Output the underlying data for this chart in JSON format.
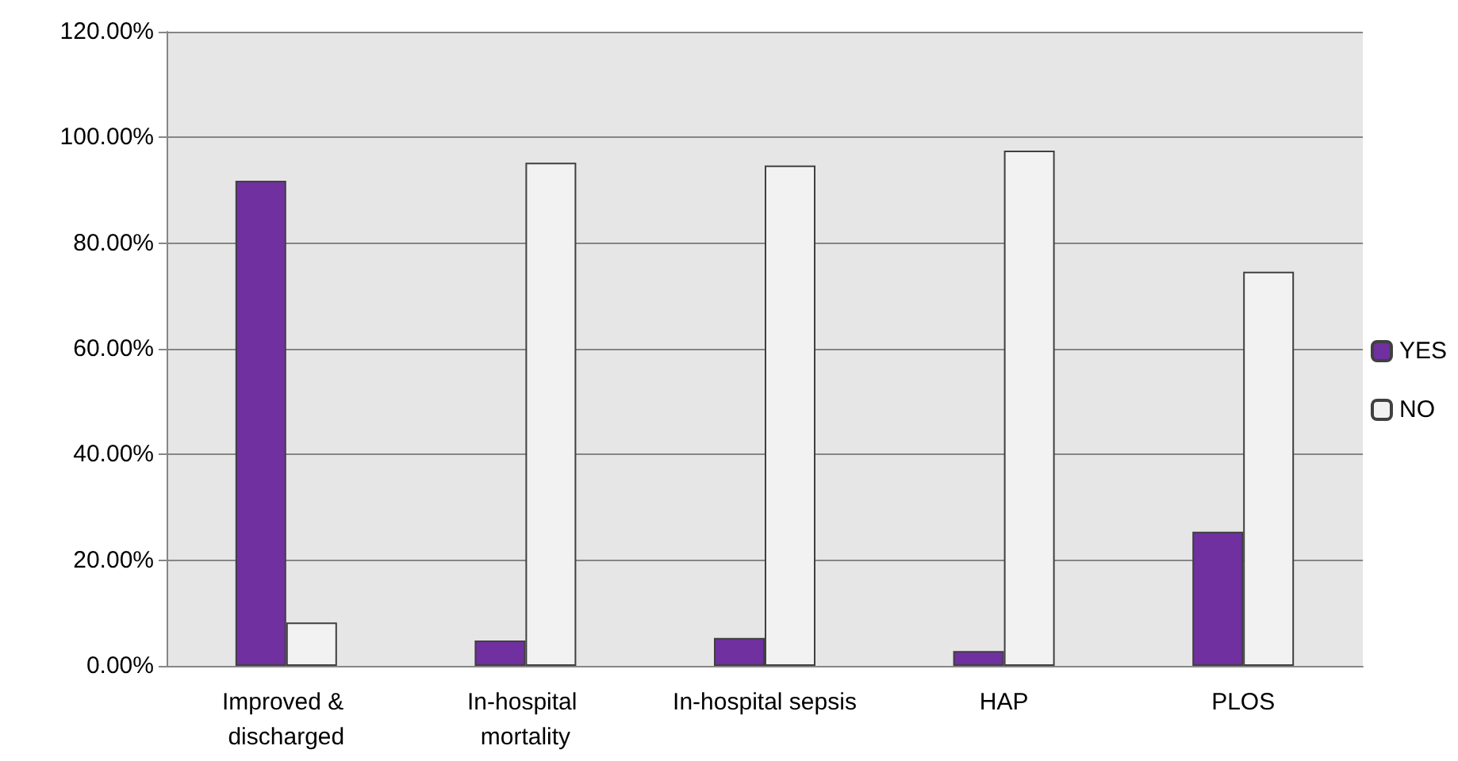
{
  "chart_data": {
    "type": "bar",
    "categories": [
      "Improved & discharged",
      "In-hospital mortality",
      "In-hospital sepsis",
      "HAP",
      "PLOS"
    ],
    "series": [
      {
        "name": "YES",
        "color": "#7030a0",
        "values": [
          91.8,
          4.8,
          5.3,
          2.8,
          25.4
        ]
      },
      {
        "name": "NO",
        "color": "#f2f2f2",
        "values": [
          8.2,
          95.2,
          94.7,
          97.5,
          74.6
        ]
      }
    ],
    "ylim": [
      0,
      120
    ],
    "yticks": [
      {
        "value": 0,
        "label": "0.00%"
      },
      {
        "value": 20,
        "label": "20.00%"
      },
      {
        "value": 40,
        "label": "40.00%"
      },
      {
        "value": 60,
        "label": "60.00%"
      },
      {
        "value": 80,
        "label": "80.00%"
      },
      {
        "value": 100,
        "label": "100.00%"
      },
      {
        "value": 120,
        "label": "120.00%"
      }
    ],
    "grid": true,
    "legend": "right"
  }
}
